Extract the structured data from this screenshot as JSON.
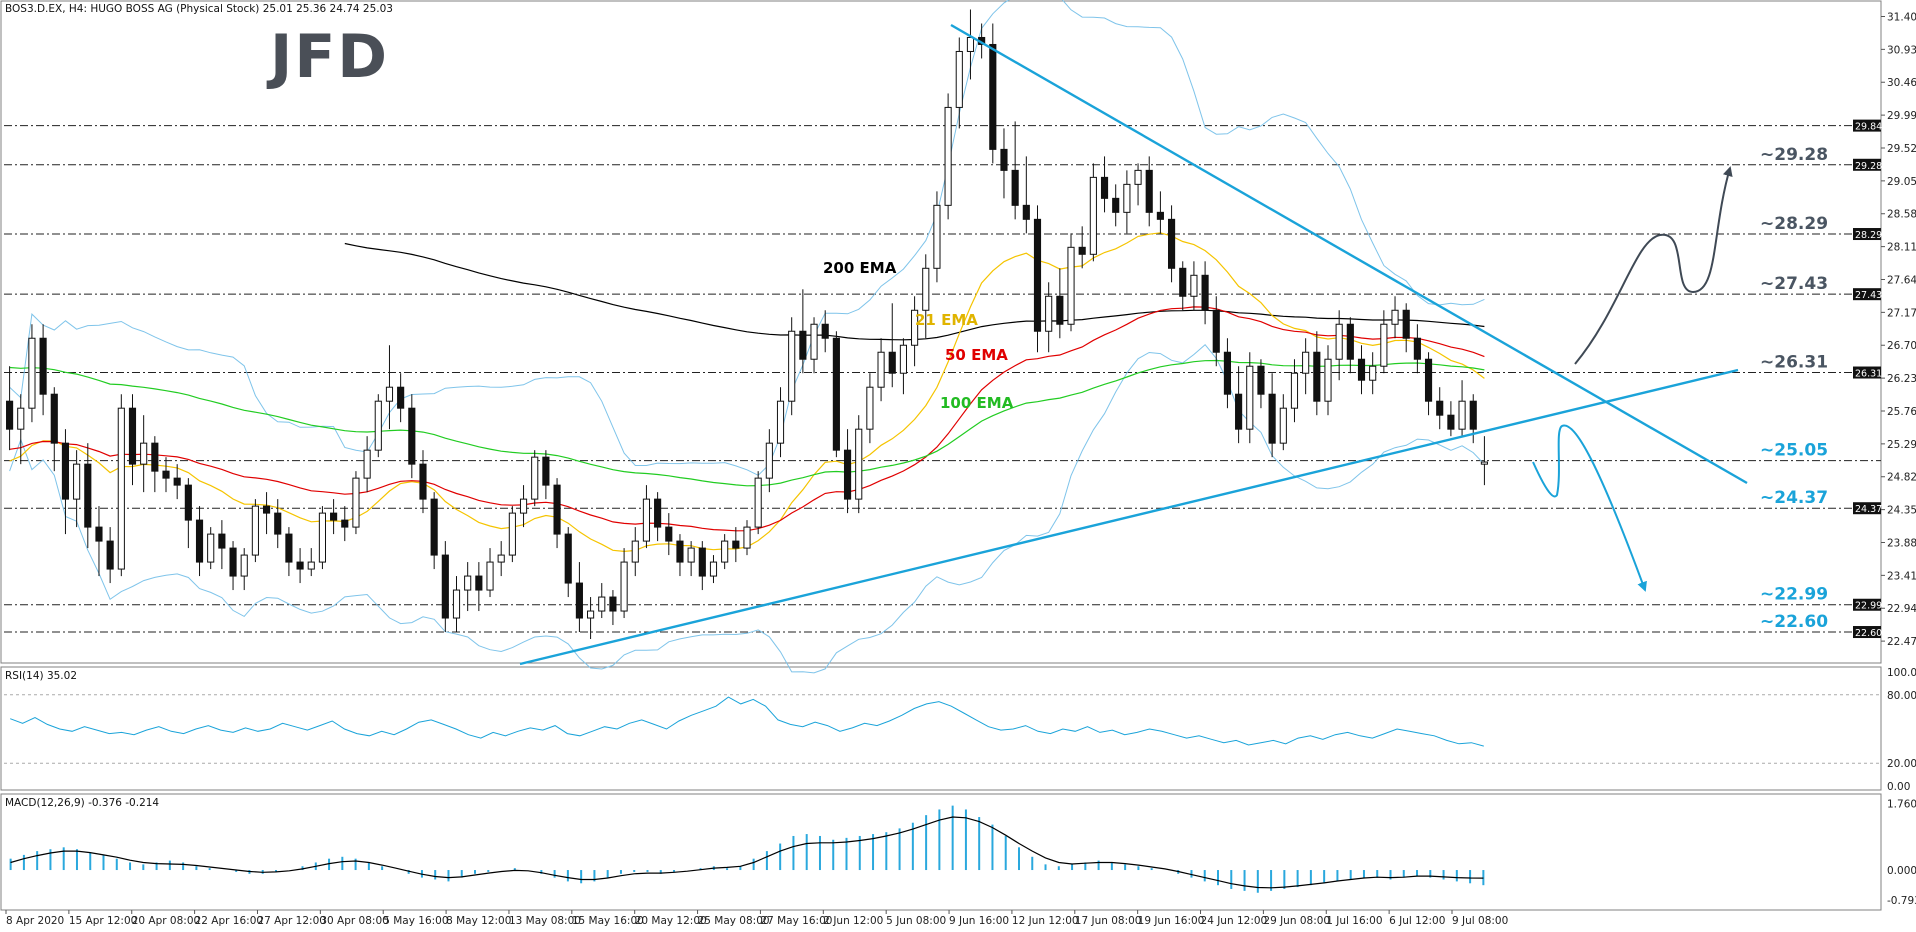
{
  "chart_data": [
    {
      "type": "candlestick",
      "header": "BOS3.D.EX, H4:  HUGO BOSS AG (Physical Stock)  25.01 25.36 24.74 25.03",
      "logo": "JFD",
      "y_axis_ticks": [
        "31.40",
        "30.93",
        "30.46",
        "29.99",
        "29.52",
        "29.05",
        "28.58",
        "28.11",
        "27.64",
        "27.17",
        "26.70",
        "26.23",
        "25.76",
        "25.29",
        "24.82",
        "24.35",
        "23.88",
        "23.41",
        "22.94",
        "22.47"
      ],
      "ylim": [
        22.2,
        31.55
      ],
      "x_axis_ticks": [
        "8 Apr 2020",
        "15 Apr 12:00",
        "20 Apr 08:00",
        "22 Apr 16:00",
        "27 Apr 12:00",
        "30 Apr 08:00",
        "5 May 16:00",
        "8 May 12:00",
        "13 May 08:00",
        "15 May 16:00",
        "20 May 12:00",
        "25 May 08:00",
        "27 May 16:00",
        "2 Jun 12:00",
        "5 Jun 08:00",
        "9 Jun 16:00",
        "12 Jun 12:00",
        "17 Jun 08:00",
        "19 Jun 16:00",
        "24 Jun 12:00",
        "29 Jun 08:00",
        "1 Jul 16:00",
        "6 Jul 12:00",
        "9 Jul 08:00"
      ],
      "levels": [
        {
          "value": 29.84,
          "tag": "29.84",
          "label": ""
        },
        {
          "value": 29.28,
          "tag": "29.28",
          "label": "~29.28"
        },
        {
          "value": 28.29,
          "tag": "28.29",
          "label": "~28.29"
        },
        {
          "value": 27.43,
          "tag": "27.43",
          "label": "~27.43"
        },
        {
          "value": 26.31,
          "tag": "26.31",
          "label": "~26.31"
        },
        {
          "value": 25.05,
          "tag": "",
          "label": "~25.05"
        },
        {
          "value": 24.37,
          "tag": "24.37",
          "label": "~24.37"
        },
        {
          "value": 22.99,
          "tag": "22.99",
          "label": "~22.99"
        },
        {
          "value": 22.6,
          "tag": "22.60",
          "label": "~22.60"
        }
      ],
      "indicators": [
        {
          "name": "200 EMA",
          "color": "#000000"
        },
        {
          "name": "21 EMA",
          "color": "#f5c400"
        },
        {
          "name": "50 EMA",
          "color": "#e00000"
        },
        {
          "name": "100 EMA",
          "color": "#22cc22"
        }
      ],
      "candles": [
        [
          25.9,
          26.4,
          25.2,
          25.5
        ],
        [
          25.5,
          26.0,
          25.0,
          25.8
        ],
        [
          25.8,
          27.0,
          25.6,
          26.8
        ],
        [
          26.8,
          27.0,
          25.7,
          26.0
        ],
        [
          26.0,
          26.1,
          24.9,
          25.3
        ],
        [
          25.3,
          25.5,
          24.0,
          24.5
        ],
        [
          24.5,
          25.2,
          24.1,
          25.0
        ],
        [
          25.0,
          25.3,
          23.8,
          24.1
        ],
        [
          24.1,
          24.4,
          23.4,
          23.9
        ],
        [
          23.9,
          24.1,
          23.3,
          23.5
        ],
        [
          23.5,
          26.0,
          23.4,
          25.8
        ],
        [
          25.8,
          26.0,
          24.7,
          25.0
        ],
        [
          25.0,
          25.7,
          24.6,
          25.3
        ],
        [
          25.3,
          25.4,
          24.6,
          24.9
        ],
        [
          24.9,
          25.1,
          24.6,
          24.8
        ],
        [
          24.8,
          25.0,
          24.5,
          24.7
        ],
        [
          24.7,
          24.8,
          23.8,
          24.2
        ],
        [
          24.2,
          24.4,
          23.4,
          23.6
        ],
        [
          23.6,
          24.1,
          23.5,
          24.0
        ],
        [
          24.0,
          24.2,
          23.5,
          23.8
        ],
        [
          23.8,
          23.9,
          23.2,
          23.4
        ],
        [
          23.4,
          23.8,
          23.2,
          23.7
        ],
        [
          23.7,
          24.5,
          23.6,
          24.4
        ],
        [
          24.4,
          24.6,
          24.0,
          24.3
        ],
        [
          24.3,
          24.5,
          23.8,
          24.0
        ],
        [
          24.0,
          24.1,
          23.4,
          23.6
        ],
        [
          23.6,
          23.8,
          23.3,
          23.5
        ],
        [
          23.5,
          23.8,
          23.4,
          23.6
        ],
        [
          23.6,
          24.4,
          23.5,
          24.3
        ],
        [
          24.3,
          24.5,
          24.0,
          24.2
        ],
        [
          24.2,
          24.4,
          23.9,
          24.1
        ],
        [
          24.1,
          24.9,
          24.0,
          24.8
        ],
        [
          24.8,
          25.4,
          24.6,
          25.2
        ],
        [
          25.2,
          26.0,
          25.1,
          25.9
        ],
        [
          25.9,
          26.7,
          25.5,
          26.1
        ],
        [
          26.1,
          26.3,
          25.6,
          25.8
        ],
        [
          25.8,
          26.0,
          24.8,
          25.0
        ],
        [
          25.0,
          25.2,
          24.3,
          24.5
        ],
        [
          24.5,
          24.6,
          23.5,
          23.7
        ],
        [
          23.7,
          23.9,
          22.6,
          22.8
        ],
        [
          22.8,
          23.4,
          22.6,
          23.2
        ],
        [
          23.2,
          23.6,
          22.9,
          23.4
        ],
        [
          23.4,
          23.6,
          22.9,
          23.2
        ],
        [
          23.2,
          23.8,
          23.1,
          23.6
        ],
        [
          23.6,
          23.9,
          23.4,
          23.7
        ],
        [
          23.7,
          24.4,
          23.6,
          24.3
        ],
        [
          24.3,
          24.7,
          24.1,
          24.5
        ],
        [
          24.5,
          25.2,
          24.4,
          25.1
        ],
        [
          25.1,
          25.2,
          24.5,
          24.7
        ],
        [
          24.7,
          24.8,
          23.8,
          24.0
        ],
        [
          24.0,
          24.1,
          23.1,
          23.3
        ],
        [
          23.3,
          23.6,
          22.6,
          22.8
        ],
        [
          22.8,
          23.1,
          22.5,
          22.9
        ],
        [
          22.9,
          23.3,
          22.8,
          23.1
        ],
        [
          23.1,
          23.2,
          22.7,
          22.9
        ],
        [
          22.9,
          23.8,
          22.8,
          23.6
        ],
        [
          23.6,
          24.1,
          23.4,
          23.9
        ],
        [
          23.9,
          24.7,
          23.8,
          24.5
        ],
        [
          24.5,
          24.6,
          23.9,
          24.1
        ],
        [
          24.1,
          24.3,
          23.7,
          23.9
        ],
        [
          23.9,
          24.0,
          23.4,
          23.6
        ],
        [
          23.6,
          23.9,
          23.4,
          23.8
        ],
        [
          23.8,
          23.9,
          23.2,
          23.4
        ],
        [
          23.4,
          23.7,
          23.3,
          23.6
        ],
        [
          23.6,
          24.0,
          23.5,
          23.9
        ],
        [
          23.9,
          24.1,
          23.6,
          23.8
        ],
        [
          23.8,
          24.2,
          23.7,
          24.1
        ],
        [
          24.1,
          24.9,
          24.0,
          24.8
        ],
        [
          24.8,
          25.5,
          24.6,
          25.3
        ],
        [
          25.3,
          26.1,
          25.1,
          25.9
        ],
        [
          25.9,
          27.1,
          25.7,
          26.9
        ],
        [
          26.9,
          27.5,
          26.3,
          26.5
        ],
        [
          26.5,
          27.1,
          26.3,
          27.0
        ],
        [
          27.0,
          27.2,
          26.6,
          26.8
        ],
        [
          26.8,
          26.9,
          25.1,
          25.2
        ],
        [
          25.2,
          25.5,
          24.3,
          24.5
        ],
        [
          24.5,
          25.7,
          24.3,
          25.5
        ],
        [
          25.5,
          26.3,
          25.3,
          26.1
        ],
        [
          26.1,
          26.8,
          25.9,
          26.6
        ],
        [
          26.6,
          27.3,
          26.1,
          26.3
        ],
        [
          26.3,
          26.8,
          26.0,
          26.7
        ],
        [
          26.7,
          27.4,
          26.4,
          27.2
        ],
        [
          27.2,
          28.0,
          26.8,
          27.8
        ],
        [
          27.8,
          28.9,
          27.6,
          28.7
        ],
        [
          28.7,
          30.3,
          28.5,
          30.1
        ],
        [
          30.1,
          31.1,
          29.8,
          30.9
        ],
        [
          30.9,
          31.5,
          30.5,
          31.1
        ],
        [
          31.1,
          31.3,
          30.8,
          31.0
        ],
        [
          31.0,
          31.3,
          29.3,
          29.5
        ],
        [
          29.5,
          29.8,
          28.8,
          29.2
        ],
        [
          29.2,
          29.9,
          28.5,
          28.7
        ],
        [
          28.7,
          29.4,
          28.3,
          28.5
        ],
        [
          28.5,
          28.7,
          26.6,
          26.9
        ],
        [
          26.9,
          27.6,
          26.6,
          27.4
        ],
        [
          27.4,
          27.8,
          26.8,
          27.0
        ],
        [
          27.0,
          28.3,
          26.9,
          28.1
        ],
        [
          28.1,
          28.4,
          27.8,
          28.0
        ],
        [
          28.0,
          29.3,
          27.9,
          29.1
        ],
        [
          29.1,
          29.4,
          28.6,
          28.8
        ],
        [
          28.8,
          29.0,
          28.4,
          28.6
        ],
        [
          28.6,
          29.2,
          28.3,
          29.0
        ],
        [
          29.0,
          29.3,
          28.7,
          29.2
        ],
        [
          29.2,
          29.4,
          28.4,
          28.6
        ],
        [
          28.6,
          28.9,
          28.3,
          28.5
        ],
        [
          28.5,
          28.7,
          27.6,
          27.8
        ],
        [
          27.8,
          27.9,
          27.2,
          27.4
        ],
        [
          27.4,
          27.9,
          27.2,
          27.7
        ],
        [
          27.7,
          27.9,
          27.0,
          27.2
        ],
        [
          27.2,
          27.4,
          26.4,
          26.6
        ],
        [
          26.6,
          26.8,
          25.8,
          26.0
        ],
        [
          26.0,
          26.4,
          25.3,
          25.5
        ],
        [
          25.5,
          26.6,
          25.3,
          26.4
        ],
        [
          26.4,
          26.5,
          25.8,
          26.0
        ],
        [
          26.0,
          26.3,
          25.1,
          25.3
        ],
        [
          25.3,
          26.0,
          25.2,
          25.8
        ],
        [
          25.8,
          26.5,
          25.6,
          26.3
        ],
        [
          26.3,
          26.8,
          26.0,
          26.6
        ],
        [
          26.6,
          26.9,
          25.7,
          25.9
        ],
        [
          25.9,
          26.7,
          25.7,
          26.5
        ],
        [
          26.5,
          27.2,
          26.2,
          27.0
        ],
        [
          27.0,
          27.1,
          26.3,
          26.5
        ],
        [
          26.5,
          26.7,
          26.0,
          26.2
        ],
        [
          26.2,
          26.6,
          26.0,
          26.4
        ],
        [
          26.4,
          27.2,
          26.3,
          27.0
        ],
        [
          27.0,
          27.4,
          26.8,
          27.2
        ],
        [
          27.2,
          27.3,
          26.6,
          26.8
        ],
        [
          26.8,
          27.0,
          26.3,
          26.5
        ],
        [
          26.5,
          26.6,
          25.7,
          25.9
        ],
        [
          25.9,
          26.1,
          25.5,
          25.7
        ],
        [
          25.7,
          25.9,
          25.4,
          25.5
        ],
        [
          25.5,
          26.2,
          25.4,
          25.9
        ],
        [
          25.9,
          26.0,
          25.3,
          25.5
        ],
        [
          25.0,
          25.4,
          24.7,
          25.03
        ]
      ]
    },
    {
      "type": "line",
      "header": "RSI(14) 35.02",
      "y_axis_ticks": [
        "100.00",
        "80.00",
        "20.00",
        "0.00"
      ],
      "levels": [
        80,
        20
      ],
      "ylim": [
        0,
        100
      ],
      "values": [
        59,
        55,
        60,
        54,
        50,
        48,
        52,
        49,
        46,
        47,
        45,
        49,
        52,
        48,
        46,
        50,
        53,
        49,
        47,
        51,
        48,
        50,
        55,
        52,
        49,
        53,
        57,
        50,
        46,
        44,
        48,
        45,
        50,
        56,
        58,
        54,
        50,
        45,
        42,
        47,
        44,
        48,
        51,
        49,
        53,
        46,
        44,
        48,
        52,
        50,
        55,
        58,
        54,
        50,
        57,
        62,
        66,
        70,
        78,
        72,
        76,
        70,
        58,
        54,
        52,
        56,
        53,
        48,
        51,
        55,
        53,
        57,
        62,
        68,
        72,
        74,
        70,
        64,
        58,
        52,
        49,
        50,
        53,
        48,
        46,
        50,
        48,
        52,
        47,
        49,
        45,
        47,
        50,
        48,
        45,
        42,
        44,
        41,
        38,
        40,
        36,
        38,
        40,
        37,
        42,
        44,
        41,
        45,
        47,
        44,
        42,
        46,
        50,
        48,
        46,
        44,
        40,
        37,
        38,
        35.02
      ]
    },
    {
      "type": "bar+line",
      "header": "MACD(12,26,9) -0.376 -0.214",
      "y_axis_ticks": [
        "1.760",
        "0.000",
        "-0.793"
      ],
      "ylim": [
        -0.95,
        1.85
      ],
      "histogram": [
        0.3,
        0.4,
        0.5,
        0.55,
        0.6,
        0.55,
        0.45,
        0.4,
        0.3,
        0.2,
        0.15,
        0.2,
        0.25,
        0.2,
        0.1,
        0.05,
        0.0,
        -0.05,
        -0.1,
        -0.1,
        -0.05,
        0.0,
        0.1,
        0.2,
        0.3,
        0.35,
        0.3,
        0.2,
        0.1,
        0.0,
        -0.1,
        -0.2,
        -0.25,
        -0.3,
        -0.2,
        -0.1,
        -0.05,
        0.0,
        0.05,
        0.0,
        -0.1,
        -0.2,
        -0.3,
        -0.35,
        -0.3,
        -0.2,
        -0.1,
        -0.05,
        -0.05,
        -0.1,
        -0.05,
        0.0,
        0.05,
        0.1,
        0.05,
        0.1,
        0.3,
        0.5,
        0.7,
        0.9,
        0.95,
        0.9,
        0.8,
        0.85,
        0.9,
        0.95,
        1.0,
        1.1,
        1.25,
        1.45,
        1.6,
        1.7,
        1.6,
        1.4,
        1.2,
        0.9,
        0.6,
        0.35,
        0.15,
        0.1,
        0.15,
        0.2,
        0.25,
        0.2,
        0.15,
        0.1,
        0.05,
        0.0,
        -0.1,
        -0.2,
        -0.3,
        -0.4,
        -0.5,
        -0.55,
        -0.6,
        -0.55,
        -0.5,
        -0.45,
        -0.4,
        -0.35,
        -0.3,
        -0.25,
        -0.2,
        -0.2,
        -0.25,
        -0.2,
        -0.15,
        -0.2,
        -0.25,
        -0.3,
        -0.35,
        -0.4
      ],
      "signal": [
        0.2,
        0.3,
        0.38,
        0.45,
        0.5,
        0.5,
        0.46,
        0.4,
        0.34,
        0.26,
        0.2,
        0.17,
        0.16,
        0.15,
        0.12,
        0.08,
        0.04,
        0.0,
        -0.04,
        -0.06,
        -0.05,
        -0.02,
        0.03,
        0.1,
        0.17,
        0.22,
        0.24,
        0.2,
        0.13,
        0.05,
        -0.03,
        -0.11,
        -0.17,
        -0.2,
        -0.18,
        -0.13,
        -0.08,
        -0.04,
        -0.01,
        -0.02,
        -0.07,
        -0.14,
        -0.2,
        -0.25,
        -0.25,
        -0.21,
        -0.15,
        -0.1,
        -0.08,
        -0.08,
        -0.06,
        -0.03,
        0.01,
        0.05,
        0.07,
        0.1,
        0.2,
        0.35,
        0.5,
        0.62,
        0.7,
        0.72,
        0.72,
        0.74,
        0.78,
        0.83,
        0.9,
        0.98,
        1.08,
        1.2,
        1.32,
        1.4,
        1.38,
        1.28,
        1.12,
        0.92,
        0.7,
        0.5,
        0.32,
        0.2,
        0.16,
        0.18,
        0.2,
        0.2,
        0.17,
        0.13,
        0.08,
        0.03,
        -0.04,
        -0.12,
        -0.2,
        -0.28,
        -0.36,
        -0.42,
        -0.46,
        -0.47,
        -0.45,
        -0.42,
        -0.38,
        -0.34,
        -0.29,
        -0.25,
        -0.21,
        -0.19,
        -0.2,
        -0.19,
        -0.16,
        -0.16,
        -0.18,
        -0.2,
        -0.21,
        -0.214
      ]
    }
  ]
}
